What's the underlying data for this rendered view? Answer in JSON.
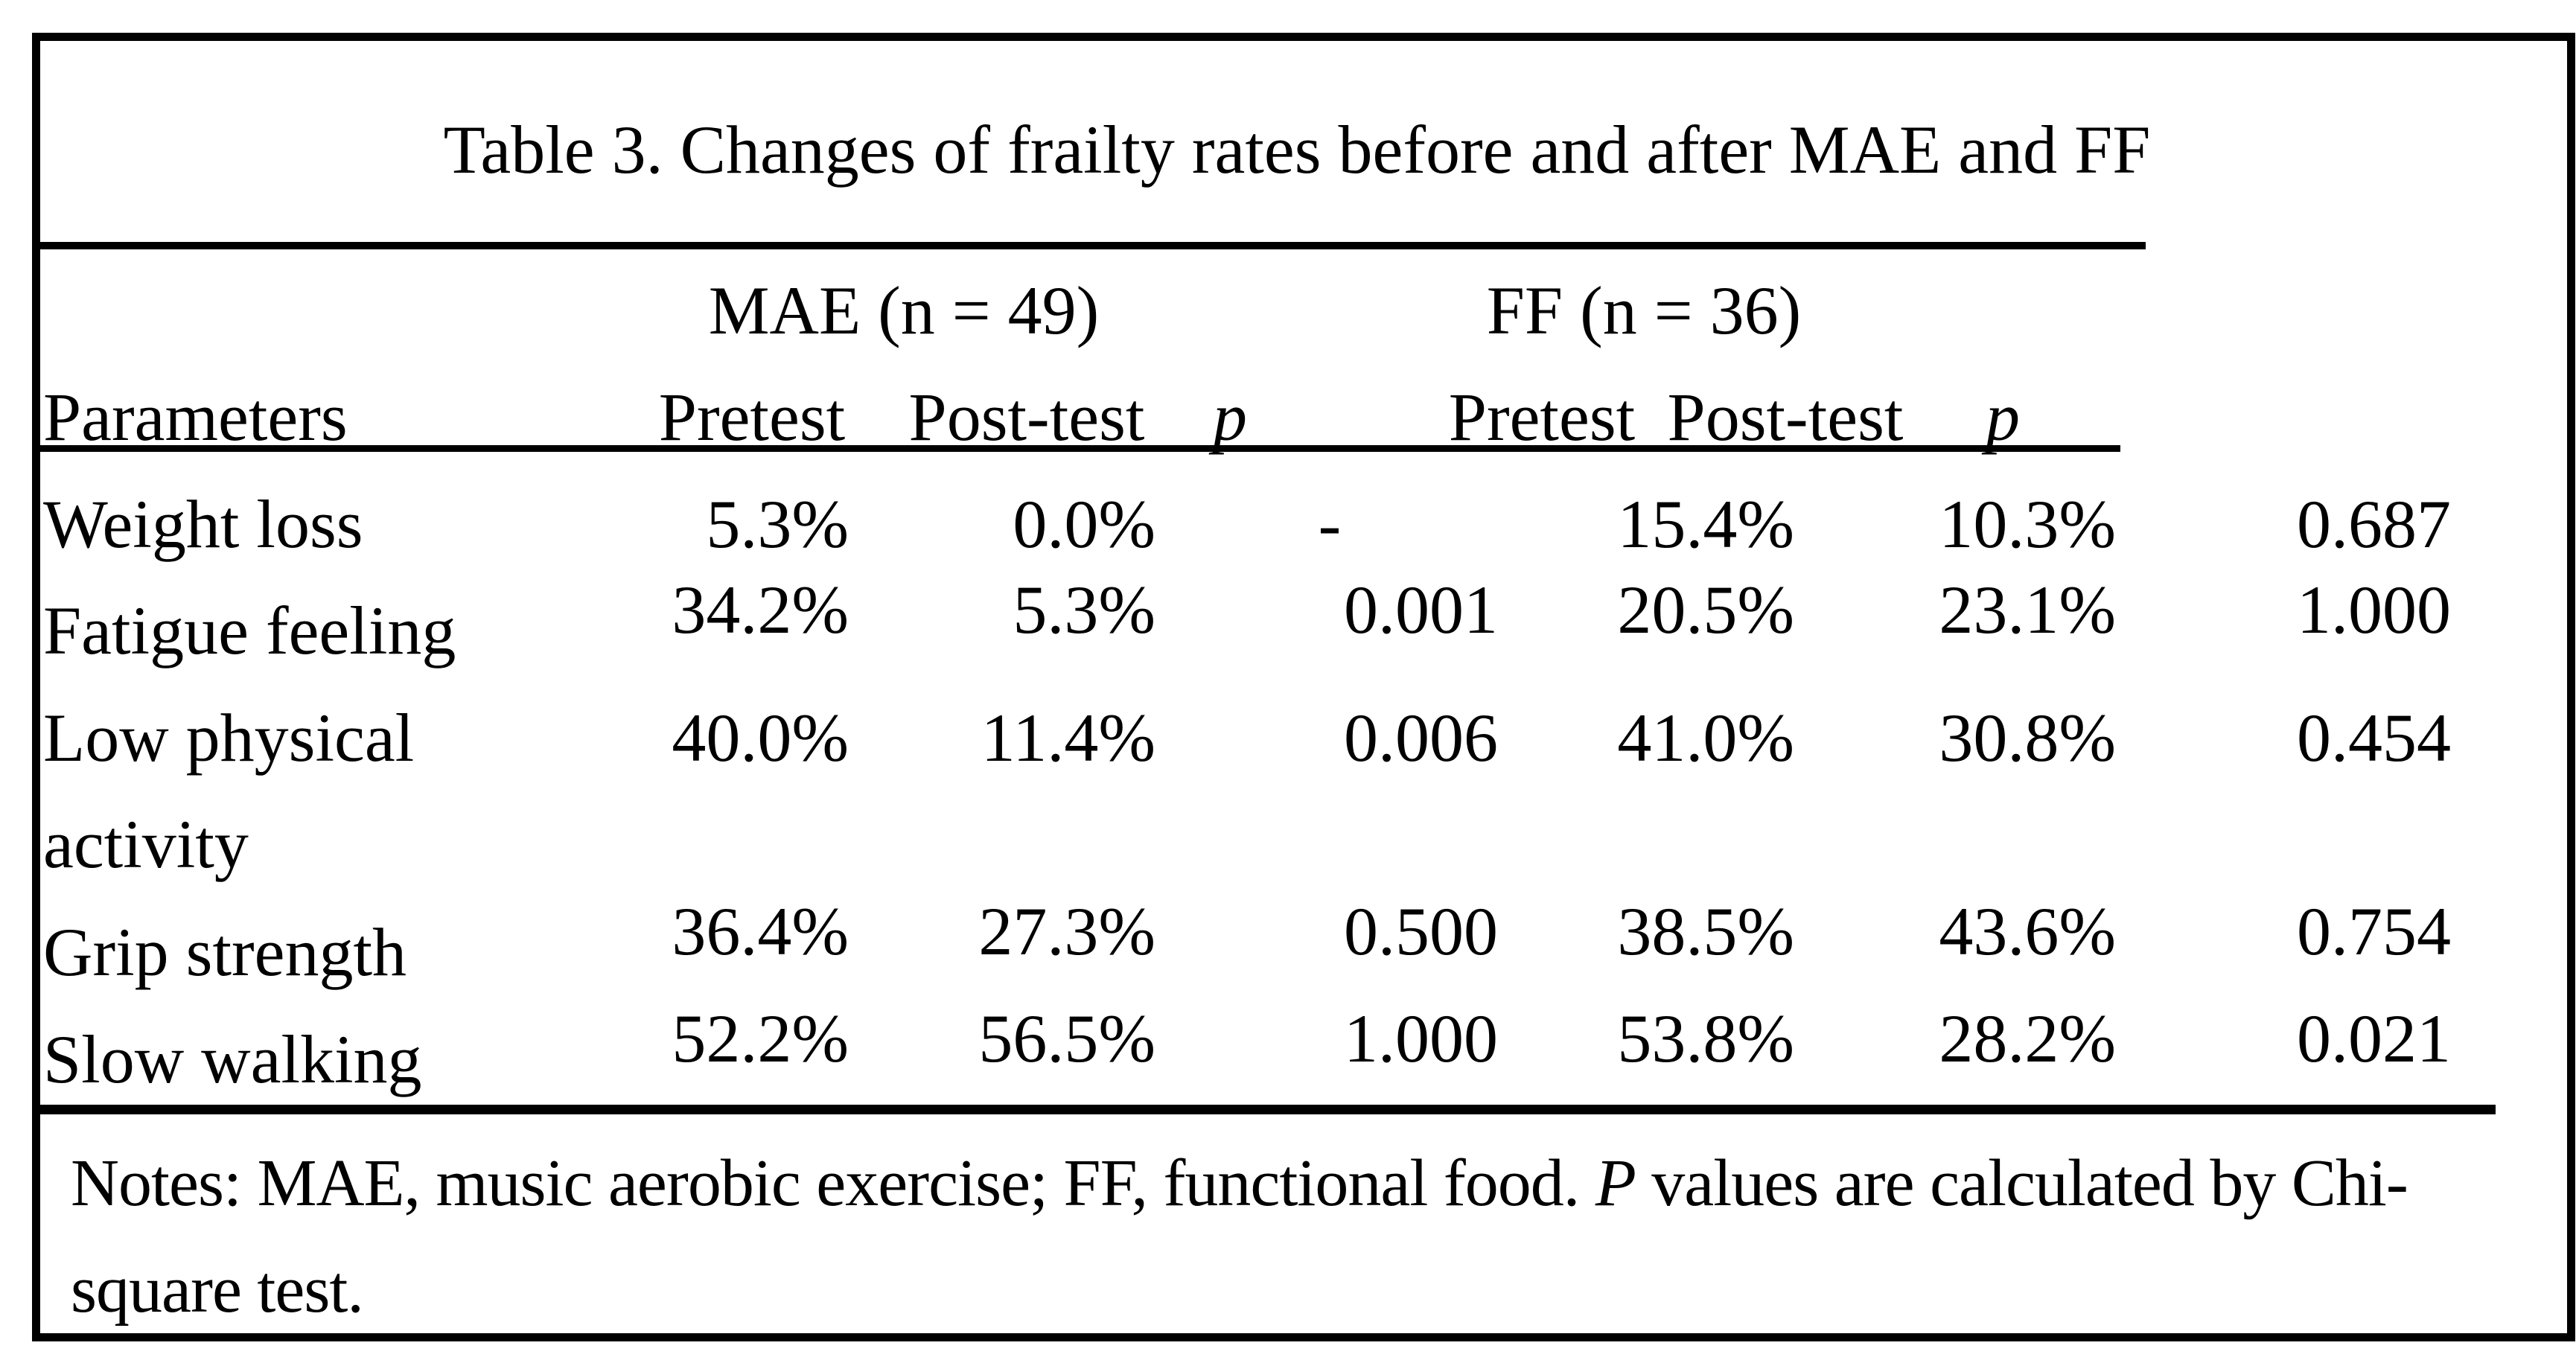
{
  "title": "Table 3. Changes of frailty rates before and after MAE and FF",
  "header": {
    "mae_group": "MAE (n = 49)",
    "ff_group": "FF (n = 36)",
    "parameters": "Parameters",
    "mae_pretest": "Pretest",
    "mae_posttest": "Post-test",
    "mae_p": "p",
    "ff_pretest": "Pretest",
    "ff_posttest": "Post-test",
    "ff_p": "p"
  },
  "rows": [
    {
      "parameter": "Weight loss",
      "mae_pretest": "5.3%",
      "mae_posttest": "0.0%",
      "mae_p": "-",
      "ff_pretest": "15.4%",
      "ff_posttest": "10.3%",
      "ff_p": "0.687"
    },
    {
      "parameter": "Fatigue feeling",
      "mae_pretest": "34.2%",
      "mae_posttest": "5.3%",
      "mae_p": "0.001",
      "ff_pretest": "20.5%",
      "ff_posttest": "23.1%",
      "ff_p": "1.000"
    },
    {
      "parameter": "Low physical activity",
      "mae_pretest": "40.0%",
      "mae_posttest": "11.4%",
      "mae_p": "0.006",
      "ff_pretest": "41.0%",
      "ff_posttest": "30.8%",
      "ff_p": "0.454"
    },
    {
      "parameter": "Grip strength",
      "mae_pretest": "36.4%",
      "mae_posttest": "27.3%",
      "mae_p": "0.500",
      "ff_pretest": "38.5%",
      "ff_posttest": "43.6%",
      "ff_p": "0.754"
    },
    {
      "parameter": "Slow walking",
      "mae_pretest": "52.2%",
      "mae_posttest": "56.5%",
      "mae_p": "1.000",
      "ff_pretest": "53.8%",
      "ff_posttest": "28.2%",
      "ff_p": "0.021"
    }
  ],
  "notes": {
    "line1_pre": "Notes: MAE, music aerobic exercise; FF, functional food. ",
    "line1_p": "P",
    "line1_post": " values are calculated by Chi-",
    "line2": "square test."
  },
  "colors": {
    "ink": "#000000",
    "background": "#ffffff"
  }
}
